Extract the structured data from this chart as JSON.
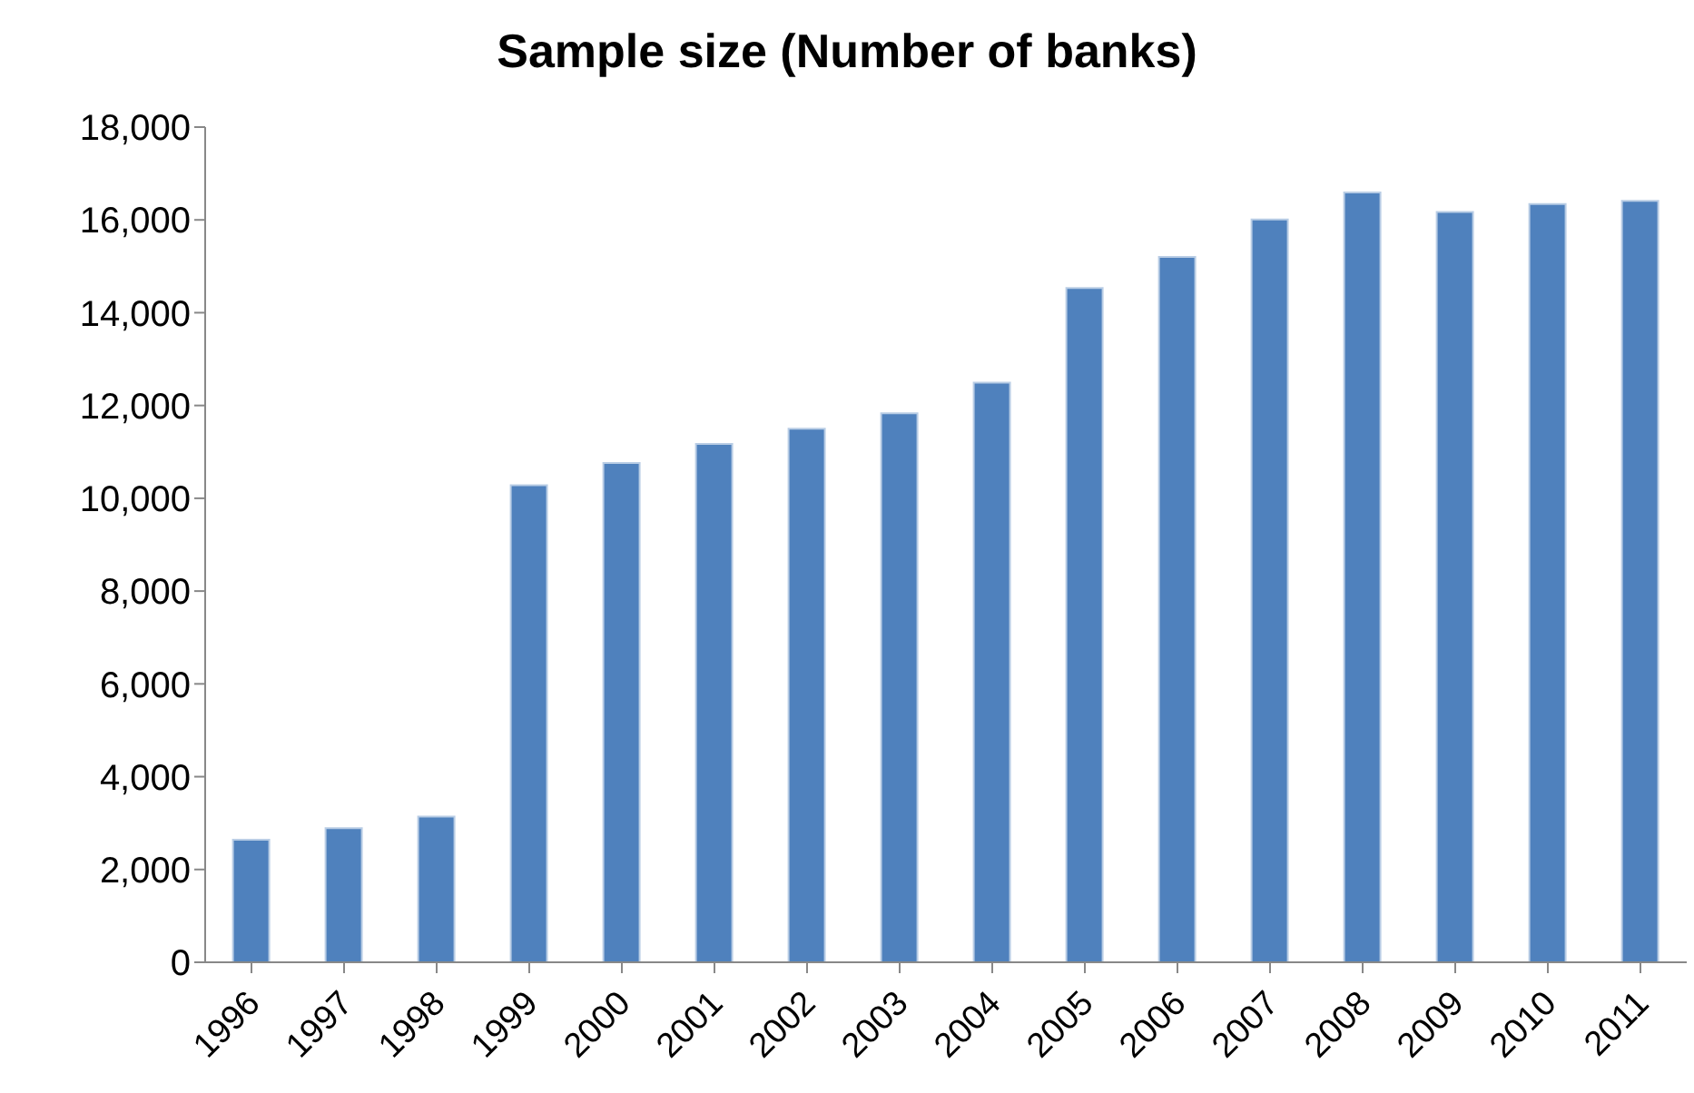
{
  "chart_data": {
    "type": "bar",
    "title": "Sample size (Number of banks)",
    "categories": [
      "1996",
      "1997",
      "1998",
      "1999",
      "2000",
      "2001",
      "2002",
      "2003",
      "2004",
      "2005",
      "2006",
      "2007",
      "2008",
      "2009",
      "2010",
      "2011"
    ],
    "values": [
      2640,
      2890,
      3140,
      10280,
      10760,
      11170,
      11500,
      11830,
      12490,
      14530,
      15200,
      16010,
      16590,
      16170,
      16340,
      16410
    ],
    "color": "#4f81bd",
    "ylim": [
      0,
      18000
    ],
    "yticks": [
      0,
      {
        "value": 2000,
        "label": "2,000"
      },
      {
        "value": 4000,
        "label": "4,000"
      },
      {
        "value": 6000,
        "label": "6,000"
      },
      {
        "value": 8000,
        "label": "8,000"
      },
      {
        "value": 10000,
        "label": "10,000"
      },
      {
        "value": 12000,
        "label": "12,000"
      },
      {
        "value": 14000,
        "label": "14,000"
      },
      {
        "value": 16000,
        "label": "16,000"
      },
      {
        "value": 18000,
        "label": "18,000"
      }
    ],
    "grid": false,
    "legend": false
  }
}
